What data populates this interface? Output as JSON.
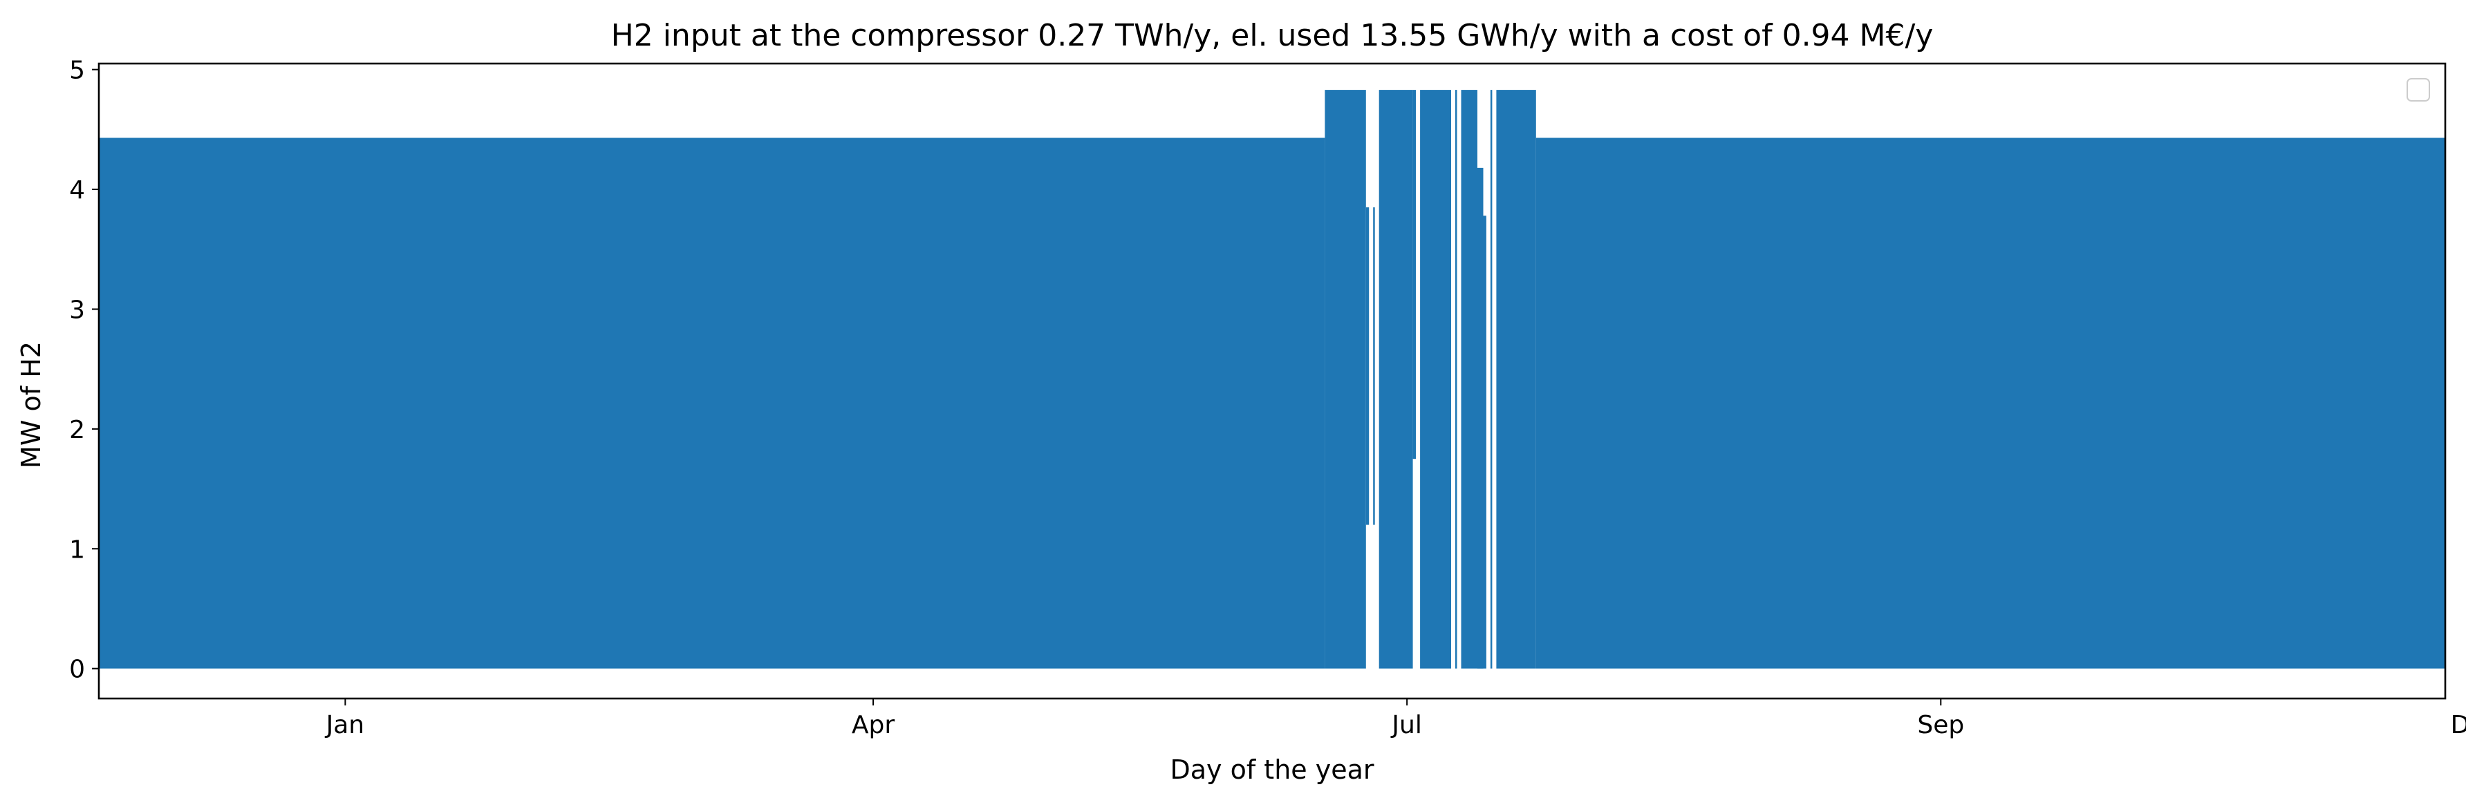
{
  "chart_data": {
    "type": "area",
    "title": "H2 input at the compressor 0.27 TWh/y, el. used 13.55 GWh/y with a cost of 0.94 M€/y",
    "xlabel": "Day of the year",
    "ylabel": "MW of H2",
    "xlim": [
      "2018-11-20",
      "2019-12-25"
    ],
    "ylim": [
      -0.25,
      5.05
    ],
    "x_ticks": [
      {
        "date": "2019-01-01",
        "label": "Jan"
      },
      {
        "date": "2019-04-01",
        "label": "Apr"
      },
      {
        "date": "2019-07-01",
        "label": "Jul"
      },
      {
        "date": "2019-09-30",
        "label": "Sep"
      },
      {
        "date": "2019-12-30",
        "label": "Dec"
      }
    ],
    "y_ticks": [
      0,
      1,
      2,
      3,
      4,
      5
    ],
    "grid": false,
    "legend": {
      "position": "top-right",
      "entries": []
    },
    "colors": {
      "series": "#1f77b4"
    },
    "series": [
      {
        "description_values": "hourly H2 flow oscillating between 0 and a plateau",
        "values": [
          {
            "start": "2018-11-20",
            "end": "2019-06-17",
            "min": 0,
            "max": 4.43
          },
          {
            "start": "2019-06-17",
            "end": "2019-06-24",
            "min": 0,
            "max": 4.83
          },
          {
            "start": "2019-06-24",
            "end": "2019-06-26",
            "min": 1.2,
            "max": 3.85
          },
          {
            "start": "2019-06-26",
            "end": "2019-07-02",
            "min": 0,
            "max": 4.83
          },
          {
            "start": "2019-07-02",
            "end": "2019-07-03",
            "min": 1.75,
            "max": 4.83
          },
          {
            "start": "2019-07-03",
            "end": "2019-07-13",
            "min": 0,
            "max": 4.83
          },
          {
            "start": "2019-07-13",
            "end": "2019-07-14",
            "min": 0,
            "max": 4.18
          },
          {
            "start": "2019-07-14",
            "end": "2019-07-15",
            "min": 0,
            "max": 3.78
          },
          {
            "start": "2019-07-15",
            "end": "2019-07-23",
            "min": 0,
            "max": 4.83
          },
          {
            "start": "2019-07-23",
            "end": "2019-12-25",
            "min": 0,
            "max": 4.43
          }
        ]
      }
    ]
  }
}
